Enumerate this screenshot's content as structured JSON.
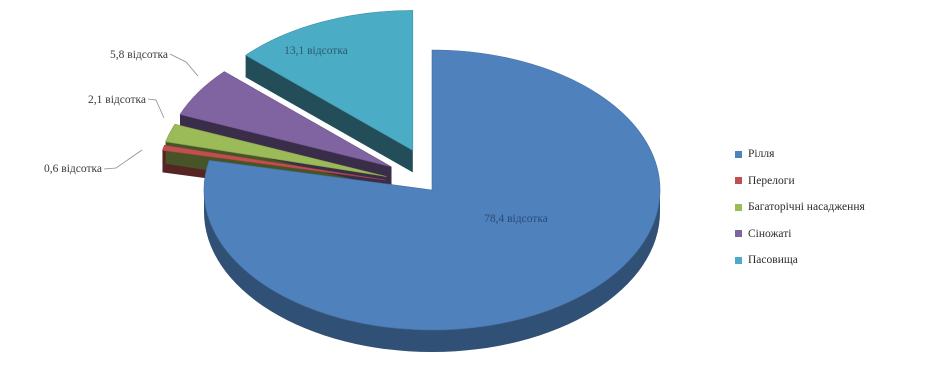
{
  "chart_data": {
    "type": "pie",
    "title": "",
    "slices": [
      {
        "name": "Рілля",
        "value": 78.4,
        "label": "78,4 відсотка",
        "color": "#4f81bd"
      },
      {
        "name": "Перелоги",
        "value": 0.6,
        "label": "0,6 відсотка",
        "color": "#c0504d"
      },
      {
        "name": "Багаторічні насадження",
        "value": 2.1,
        "label": "2,1 відсотка",
        "color": "#9bbb59"
      },
      {
        "name": "Сіножаті",
        "value": 5.8,
        "label": "5,8 відсотка",
        "color": "#8064a2"
      },
      {
        "name": "Пасовища",
        "value": 13.1,
        "label": "13,1 відсотка",
        "color": "#4bacc6"
      }
    ],
    "legend_position": "right"
  }
}
